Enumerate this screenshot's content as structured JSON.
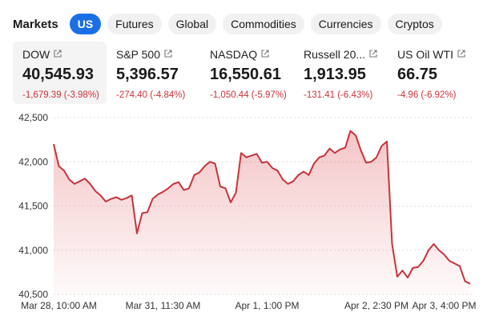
{
  "header": {
    "title": "Markets",
    "tabs": [
      "US",
      "Futures",
      "Global",
      "Commodities",
      "Currencies",
      "Cryptos"
    ],
    "active_tab": 0
  },
  "tickers": [
    {
      "name": "DOW",
      "price": "40,545.93",
      "change": "-1,679.39 (-3.98%)"
    },
    {
      "name": "S&P 500",
      "price": "5,396.57",
      "change": "-274.40 (-4.84%)"
    },
    {
      "name": "NASDAQ",
      "price": "16,550.61",
      "change": "-1,050.44 (-5.97%)"
    },
    {
      "name": "Russell 20...",
      "price": "1,913.95",
      "change": "-131.41 (-6.43%)"
    },
    {
      "name": "US Oil WTI",
      "price": "66.75",
      "change": "-4.96 (-6.92%)"
    }
  ],
  "chart_data": {
    "type": "line",
    "color": "#c8333a",
    "grid": true,
    "categories": [
      null,
      "Mar 28, 10:00 AM",
      null,
      null,
      null,
      null,
      null,
      null,
      null,
      null,
      null,
      null,
      null,
      null,
      null,
      null,
      null,
      null,
      null,
      null,
      null,
      "Mar 31, 11:30 AM",
      null,
      null,
      null,
      null,
      null,
      null,
      null,
      null,
      null,
      null,
      null,
      null,
      null,
      null,
      null,
      null,
      null,
      null,
      null,
      "Apr 1, 1:00 PM",
      null,
      null,
      null,
      null,
      null,
      null,
      null,
      null,
      null,
      null,
      null,
      null,
      null,
      null,
      null,
      null,
      null,
      null,
      null,
      null,
      "Apr 2, 2:30 PM",
      null,
      null,
      null,
      null,
      null,
      null,
      null,
      null,
      null,
      null,
      null,
      null,
      "Apr 3, 4:00 PM",
      null,
      null,
      null,
      null,
      null
    ],
    "values": [
      42200,
      41950,
      41900,
      41800,
      41750,
      41780,
      41810,
      41750,
      41670,
      41620,
      41550,
      41580,
      41600,
      41570,
      41590,
      41620,
      41190,
      41420,
      41430,
      41580,
      41630,
      41660,
      41700,
      41750,
      41770,
      41680,
      41700,
      41850,
      41880,
      41950,
      42000,
      41980,
      41720,
      41700,
      41540,
      41650,
      42100,
      42050,
      42070,
      42090,
      41990,
      42000,
      41930,
      41900,
      41800,
      41750,
      41780,
      41850,
      41890,
      41850,
      41980,
      42050,
      42070,
      42150,
      42100,
      42140,
      42160,
      42350,
      42300,
      42130,
      41990,
      42000,
      42050,
      42180,
      42230,
      41070,
      40700,
      40770,
      40690,
      40800,
      40810,
      40880,
      41000,
      41070,
      41000,
      40950,
      40880,
      40850,
      40820,
      40650,
      40620
    ],
    "ylim": [
      40500,
      42500
    ],
    "yticks": [
      {
        "value": 40500,
        "label": "40,500"
      },
      {
        "value": 41000,
        "label": "41,000"
      },
      {
        "value": 41500,
        "label": "41,500"
      },
      {
        "value": 42000,
        "label": "42,000"
      },
      {
        "value": 42500,
        "label": "42,500"
      }
    ]
  }
}
